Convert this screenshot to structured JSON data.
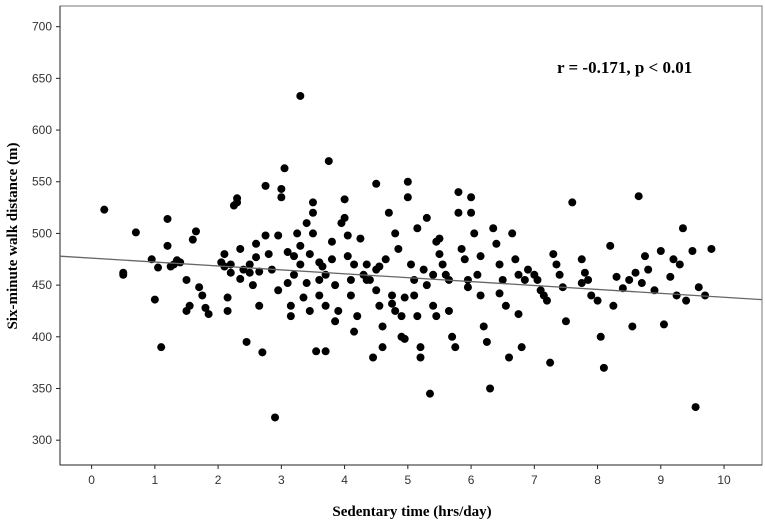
{
  "chart_data": {
    "type": "scatter",
    "xlabel": "Sedentary time (hrs/day)",
    "ylabel": "Six-minute walk distance (m)",
    "annotation": "r = -0.171, p < 0.01",
    "xlim": [
      -0.5,
      10.6
    ],
    "ylim": [
      276,
      720
    ],
    "x_ticks": [
      0,
      1,
      2,
      3,
      4,
      5,
      6,
      7,
      8,
      9,
      10
    ],
    "y_ticks": [
      300,
      350,
      400,
      450,
      500,
      550,
      600,
      650,
      700
    ],
    "grid": false,
    "fit_line": {
      "x": [
        -0.5,
        10.6
      ],
      "y": [
        478,
        436
      ]
    },
    "points": [
      [
        0.2,
        523
      ],
      [
        0.5,
        462
      ],
      [
        0.5,
        460
      ],
      [
        0.7,
        501
      ],
      [
        1.0,
        436
      ],
      [
        1.05,
        467
      ],
      [
        1.1,
        390
      ],
      [
        1.2,
        514
      ],
      [
        1.2,
        488
      ],
      [
        1.3,
        470
      ],
      [
        1.35,
        474
      ],
      [
        1.4,
        472
      ],
      [
        1.5,
        425
      ],
      [
        1.5,
        455
      ],
      [
        1.6,
        494
      ],
      [
        1.65,
        502
      ],
      [
        1.7,
        448
      ],
      [
        1.75,
        440
      ],
      [
        1.8,
        428
      ],
      [
        1.85,
        422
      ],
      [
        2.1,
        480
      ],
      [
        2.1,
        468
      ],
      [
        2.15,
        438
      ],
      [
        2.15,
        425
      ],
      [
        2.2,
        470
      ],
      [
        2.2,
        462
      ],
      [
        2.25,
        527
      ],
      [
        2.3,
        534
      ],
      [
        2.3,
        530
      ],
      [
        2.35,
        485
      ],
      [
        2.4,
        465
      ],
      [
        2.45,
        395
      ],
      [
        2.5,
        470
      ],
      [
        2.5,
        462
      ],
      [
        2.55,
        450
      ],
      [
        2.6,
        490
      ],
      [
        2.6,
        477
      ],
      [
        2.65,
        463
      ],
      [
        2.7,
        385
      ],
      [
        2.75,
        546
      ],
      [
        2.75,
        498
      ],
      [
        2.8,
        480
      ],
      [
        2.85,
        465
      ],
      [
        2.9,
        322
      ],
      [
        2.95,
        498
      ],
      [
        3.0,
        543
      ],
      [
        3.0,
        535
      ],
      [
        3.05,
        563
      ],
      [
        3.1,
        482
      ],
      [
        3.1,
        452
      ],
      [
        3.15,
        430
      ],
      [
        3.15,
        420
      ],
      [
        3.2,
        478
      ],
      [
        3.2,
        460
      ],
      [
        3.3,
        633
      ],
      [
        3.3,
        470
      ],
      [
        3.3,
        488
      ],
      [
        3.35,
        438
      ],
      [
        3.4,
        452
      ],
      [
        3.4,
        510
      ],
      [
        3.45,
        480
      ],
      [
        3.5,
        500
      ],
      [
        3.5,
        530
      ],
      [
        3.5,
        520
      ],
      [
        3.55,
        386
      ],
      [
        3.6,
        472
      ],
      [
        3.6,
        455
      ],
      [
        3.6,
        440
      ],
      [
        3.7,
        386
      ],
      [
        3.7,
        460
      ],
      [
        3.7,
        430
      ],
      [
        3.75,
        570
      ],
      [
        3.8,
        492
      ],
      [
        3.8,
        475
      ],
      [
        3.85,
        450
      ],
      [
        3.9,
        425
      ],
      [
        3.95,
        510
      ],
      [
        4.0,
        533
      ],
      [
        4.0,
        515
      ],
      [
        4.05,
        498
      ],
      [
        4.05,
        478
      ],
      [
        4.1,
        455
      ],
      [
        4.1,
        440
      ],
      [
        4.15,
        470
      ],
      [
        4.2,
        420
      ],
      [
        4.25,
        495
      ],
      [
        4.3,
        460
      ],
      [
        4.35,
        470
      ],
      [
        4.4,
        455
      ],
      [
        4.45,
        380
      ],
      [
        4.5,
        548
      ],
      [
        4.5,
        465
      ],
      [
        4.5,
        445
      ],
      [
        4.55,
        430
      ],
      [
        4.6,
        410
      ],
      [
        4.6,
        390
      ],
      [
        4.65,
        475
      ],
      [
        4.7,
        520
      ],
      [
        4.75,
        440
      ],
      [
        4.8,
        425
      ],
      [
        4.8,
        500
      ],
      [
        4.85,
        485
      ],
      [
        4.9,
        420
      ],
      [
        4.9,
        400
      ],
      [
        4.95,
        398
      ],
      [
        5.0,
        550
      ],
      [
        5.0,
        535
      ],
      [
        5.05,
        470
      ],
      [
        5.1,
        455
      ],
      [
        5.1,
        440
      ],
      [
        5.15,
        420
      ],
      [
        5.2,
        390
      ],
      [
        5.2,
        380
      ],
      [
        5.25,
        465
      ],
      [
        5.3,
        515
      ],
      [
        5.3,
        450
      ],
      [
        5.35,
        345
      ],
      [
        5.4,
        460
      ],
      [
        5.4,
        430
      ],
      [
        5.45,
        420
      ],
      [
        5.5,
        495
      ],
      [
        5.5,
        480
      ],
      [
        5.55,
        470
      ],
      [
        5.6,
        460
      ],
      [
        5.65,
        425
      ],
      [
        5.7,
        400
      ],
      [
        5.75,
        390
      ],
      [
        5.8,
        540
      ],
      [
        5.8,
        520
      ],
      [
        5.85,
        485
      ],
      [
        5.9,
        475
      ],
      [
        5.95,
        455
      ],
      [
        6.0,
        535
      ],
      [
        6.0,
        520
      ],
      [
        6.05,
        500
      ],
      [
        6.1,
        460
      ],
      [
        6.15,
        440
      ],
      [
        6.2,
        410
      ],
      [
        6.25,
        395
      ],
      [
        6.3,
        350
      ],
      [
        6.35,
        505
      ],
      [
        6.4,
        490
      ],
      [
        6.45,
        470
      ],
      [
        6.5,
        455
      ],
      [
        6.55,
        430
      ],
      [
        6.6,
        380
      ],
      [
        6.65,
        500
      ],
      [
        6.7,
        475
      ],
      [
        6.75,
        460
      ],
      [
        6.8,
        390
      ],
      [
        6.85,
        455
      ],
      [
        6.9,
        465
      ],
      [
        7.0,
        460
      ],
      [
        7.1,
        445
      ],
      [
        7.15,
        440
      ],
      [
        7.2,
        435
      ],
      [
        7.25,
        375
      ],
      [
        7.3,
        480
      ],
      [
        7.35,
        470
      ],
      [
        7.4,
        460
      ],
      [
        7.5,
        415
      ],
      [
        7.6,
        530
      ],
      [
        7.75,
        475
      ],
      [
        7.8,
        462
      ],
      [
        7.85,
        455
      ],
      [
        7.9,
        440
      ],
      [
        8.0,
        435
      ],
      [
        8.05,
        400
      ],
      [
        8.1,
        370
      ],
      [
        8.2,
        488
      ],
      [
        8.3,
        458
      ],
      [
        8.4,
        447
      ],
      [
        8.5,
        455
      ],
      [
        8.55,
        410
      ],
      [
        8.6,
        462
      ],
      [
        8.65,
        536
      ],
      [
        8.7,
        452
      ],
      [
        8.8,
        465
      ],
      [
        8.9,
        445
      ],
      [
        9.0,
        483
      ],
      [
        9.05,
        412
      ],
      [
        9.2,
        475
      ],
      [
        9.25,
        440
      ],
      [
        9.3,
        470
      ],
      [
        9.35,
        505
      ],
      [
        9.4,
        435
      ],
      [
        9.5,
        483
      ],
      [
        9.55,
        332
      ],
      [
        9.6,
        448
      ],
      [
        9.7,
        440
      ],
      [
        9.8,
        485
      ],
      [
        0.95,
        475
      ],
      [
        1.25,
        468
      ],
      [
        1.55,
        430
      ],
      [
        2.05,
        472
      ],
      [
        2.35,
        456
      ],
      [
        2.65,
        430
      ],
      [
        2.95,
        445
      ],
      [
        3.25,
        500
      ],
      [
        3.45,
        425
      ],
      [
        3.65,
        468
      ],
      [
        3.85,
        415
      ],
      [
        4.15,
        405
      ],
      [
        4.35,
        455
      ],
      [
        4.55,
        468
      ],
      [
        4.75,
        432
      ],
      [
        4.95,
        438
      ],
      [
        5.15,
        505
      ],
      [
        5.45,
        492
      ],
      [
        5.65,
        455
      ],
      [
        5.95,
        448
      ],
      [
        6.15,
        478
      ],
      [
        6.45,
        442
      ],
      [
        6.75,
        422
      ],
      [
        7.05,
        455
      ],
      [
        7.45,
        448
      ],
      [
        7.75,
        452
      ],
      [
        8.25,
        430
      ],
      [
        8.75,
        478
      ],
      [
        9.15,
        458
      ]
    ]
  }
}
